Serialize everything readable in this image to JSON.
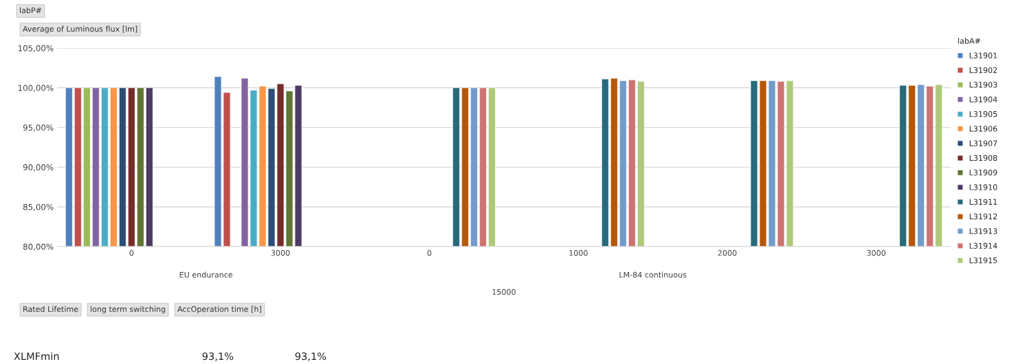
{
  "chart_data": {
    "type": "bar",
    "categories": [
      "0",
      "3000",
      "0",
      "1000",
      "2000",
      "3000"
    ],
    "series": [
      {
        "name": "L31901",
        "color": "#4f81bd",
        "values": [
          100.0,
          101.4,
          null,
          null,
          null,
          null
        ]
      },
      {
        "name": "L31902",
        "color": "#c0504d",
        "values": [
          100.0,
          99.4,
          null,
          null,
          null,
          null
        ]
      },
      {
        "name": "L31903",
        "color": "#9bbb59",
        "values": [
          100.0,
          null,
          null,
          null,
          null,
          null
        ]
      },
      {
        "name": "L31904",
        "color": "#8064a2",
        "values": [
          100.0,
          101.2,
          null,
          null,
          null,
          null
        ]
      },
      {
        "name": "L31905",
        "color": "#4bacc6",
        "values": [
          100.0,
          99.7,
          null,
          null,
          null,
          null
        ]
      },
      {
        "name": "L31906",
        "color": "#f79646",
        "values": [
          100.0,
          100.2,
          null,
          null,
          null,
          null
        ]
      },
      {
        "name": "L31907",
        "color": "#2c4d75",
        "values": [
          100.0,
          99.9,
          null,
          null,
          null,
          null
        ]
      },
      {
        "name": "L31908",
        "color": "#772c2a",
        "values": [
          100.0,
          100.5,
          null,
          null,
          null,
          null
        ]
      },
      {
        "name": "L31909",
        "color": "#5f7530",
        "values": [
          100.0,
          99.6,
          null,
          null,
          null,
          null
        ]
      },
      {
        "name": "L31910",
        "color": "#4d3b62",
        "values": [
          100.0,
          100.3,
          null,
          null,
          null,
          null
        ]
      },
      {
        "name": "L31911",
        "color": "#276a7c",
        "values": [
          null,
          null,
          100.0,
          101.1,
          100.9,
          100.3
        ]
      },
      {
        "name": "L31912",
        "color": "#b65708",
        "values": [
          null,
          null,
          100.0,
          101.2,
          100.9,
          100.3
        ]
      },
      {
        "name": "L31913",
        "color": "#729aca",
        "values": [
          null,
          null,
          100.0,
          100.9,
          100.9,
          100.4
        ]
      },
      {
        "name": "L31914",
        "color": "#cd7371",
        "values": [
          null,
          null,
          100.0,
          101.0,
          100.8,
          100.2
        ]
      },
      {
        "name": "L31915",
        "color": "#afc97a",
        "values": [
          null,
          null,
          100.0,
          100.8,
          100.9,
          100.4
        ]
      }
    ],
    "ylim": [
      80,
      105
    ],
    "yticks": [
      {
        "value": 80,
        "label": "80,00%"
      },
      {
        "value": 85,
        "label": "85,00%"
      },
      {
        "value": 90,
        "label": "90,00%"
      },
      {
        "value": 95,
        "label": "95,00%"
      },
      {
        "value": 100,
        "label": "100,00%"
      },
      {
        "value": 105,
        "label": "105,00%"
      }
    ],
    "grid": "y",
    "legend": "right",
    "legend_title": "labA#",
    "annotations": [
      "labP#",
      "Average of Luminous flux [lm]",
      "EU endurance",
      "LM-84 continuous",
      "15000",
      "Rated Lifetime",
      "long term switching",
      "AccOperation time [h]",
      "XLMFmin",
      "93,1%",
      "93,1%"
    ]
  }
}
